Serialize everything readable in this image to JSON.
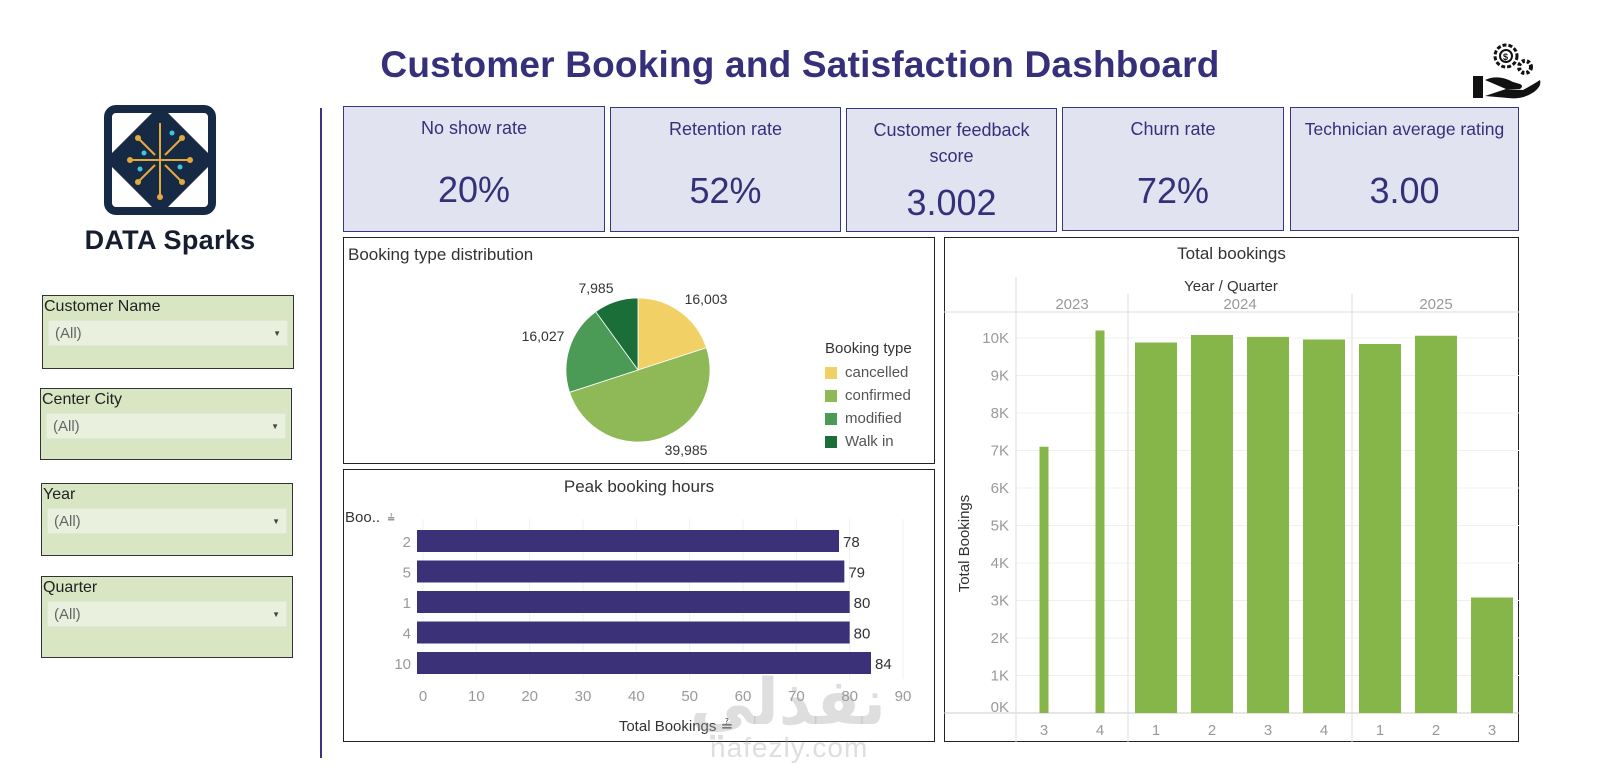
{
  "header": {
    "title": "Customer Booking and Satisfaction Dashboard",
    "logo_text": "DATA Sparks",
    "corner_icon": "hand-gear-dollar-icon"
  },
  "filters": [
    {
      "label": "Customer Name",
      "value": "(All)"
    },
    {
      "label": "Center City",
      "value": "(All)"
    },
    {
      "label": "Year",
      "value": "(All)"
    },
    {
      "label": "Quarter",
      "value": "(All)"
    }
  ],
  "kpis": [
    {
      "label": "No show rate",
      "value": "20%"
    },
    {
      "label": "Retention rate",
      "value": "52%"
    },
    {
      "label": "Customer feedback score",
      "value": "3.002"
    },
    {
      "label": "Churn rate",
      "value": "72%"
    },
    {
      "label": "Technician average rating",
      "value": "3.00"
    }
  ],
  "colors": {
    "accent": "#36307a",
    "kpi_bg": "#e2e3f1",
    "filter_bg": "#d8e6c4",
    "bar_purple": "#3a3178",
    "bar_green": "#86b54a"
  },
  "watermark": {
    "arabic": "نفذلي",
    "latin": "nafezly.com"
  },
  "chart_data": [
    {
      "type": "pie",
      "title": "Booking type distribution",
      "legend_title": "Booking type",
      "legend_position": "right",
      "categories": [
        "cancelled",
        "confirmed",
        "modified",
        "Walk in"
      ],
      "values": [
        16003,
        39985,
        16027,
        7985
      ],
      "labels": [
        "16,003",
        "39,985",
        "16,027",
        "7,985"
      ],
      "colors": [
        "#f1d166",
        "#8fb856",
        "#4b9a56",
        "#1c6e38"
      ]
    },
    {
      "type": "bar",
      "orientation": "horizontal",
      "title": "Peak booking hours",
      "ylabel": "Boo..",
      "xlabel": "Total Bookings",
      "categories": [
        "2",
        "5",
        "1",
        "4",
        "10"
      ],
      "values": [
        78,
        79,
        80,
        80,
        84
      ],
      "xlim": [
        0,
        90
      ],
      "xticks": [
        0,
        10,
        20,
        30,
        40,
        50,
        60,
        70,
        80,
        90
      ],
      "grid": true,
      "color": "#3a3178"
    },
    {
      "type": "bar",
      "title": "Total bookings",
      "group_header": "Year / Quarter",
      "ylabel": "Total Bookings",
      "groups": [
        {
          "year": "2023",
          "quarters": [
            "3",
            "4"
          ],
          "values": [
            7100,
            10200
          ]
        },
        {
          "year": "2024",
          "quarters": [
            "1",
            "2",
            "3",
            "4"
          ],
          "values": [
            9880,
            10080,
            10030,
            9960
          ]
        },
        {
          "year": "2025",
          "quarters": [
            "1",
            "2",
            "3"
          ],
          "values": [
            9840,
            10060,
            3080
          ]
        }
      ],
      "ylim": [
        0,
        10500
      ],
      "yticks": [
        0,
        1000,
        2000,
        3000,
        4000,
        5000,
        6000,
        7000,
        8000,
        9000,
        10000
      ],
      "ytick_labels": [
        "0K",
        "1K",
        "2K",
        "3K",
        "4K",
        "5K",
        "6K",
        "7K",
        "8K",
        "9K",
        "10K"
      ],
      "grid": true,
      "color": "#86b54a"
    }
  ]
}
